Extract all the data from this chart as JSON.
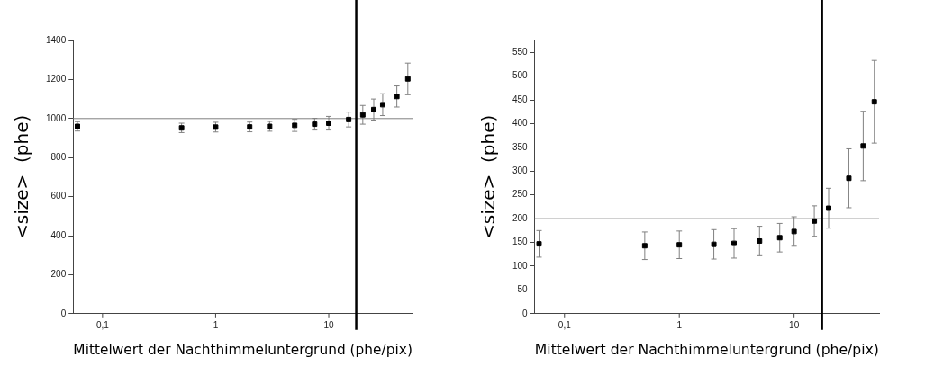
{
  "chart_data": [
    {
      "type": "scatter",
      "xlabel": "Mittelwert der Nachthimmeluntergrund (phe/pix)",
      "ylabel": "<size>  (phe)",
      "log": "x",
      "marker": "square",
      "grid": false,
      "legend": false,
      "xlim": [
        0.055,
        55
      ],
      "xticks": [
        {
          "value": 0.1,
          "label": "0,1"
        },
        {
          "value": 1,
          "label": "1"
        },
        {
          "value": 10,
          "label": "10"
        }
      ],
      "ylim": [
        0,
        1400
      ],
      "yticks": [
        0,
        200,
        400,
        600,
        800,
        1000,
        1200,
        1400
      ],
      "x": [
        0.06,
        0.5,
        1,
        2,
        3,
        5,
        7.5,
        10,
        15,
        20,
        25,
        30,
        40,
        50
      ],
      "series": [
        {
          "color": "#000000",
          "values": [
            960,
            952,
            956,
            957,
            960,
            965,
            971,
            976,
            995,
            1019,
            1046,
            1071,
            1113,
            1203
          ],
          "errors": [
            24,
            24,
            25,
            25,
            25,
            31,
            30,
            35,
            38,
            48,
            54,
            56,
            54,
            81
          ]
        }
      ],
      "ref_lines": [
        {
          "axis": "y",
          "value": 1000,
          "color": "#808080"
        },
        {
          "axis": "x",
          "value": 17.5,
          "color": "#000000"
        }
      ]
    },
    {
      "type": "scatter",
      "xlabel": "Mittelwert der Nachthimmeluntergrund (phe/pix)",
      "ylabel": "<size>  (phe)",
      "log": "x",
      "marker": "square",
      "grid": false,
      "legend": false,
      "xlim": [
        0.055,
        55
      ],
      "xticks": [
        {
          "value": 0.1,
          "label": "0,1"
        },
        {
          "value": 1,
          "label": "1"
        },
        {
          "value": 10,
          "label": "10"
        }
      ],
      "ylim": [
        0,
        575
      ],
      "yticks": [
        0,
        50,
        100,
        150,
        200,
        250,
        300,
        350,
        400,
        450,
        500,
        550
      ],
      "x": [
        0.06,
        0.5,
        1,
        2,
        3,
        5,
        7.5,
        10,
        15,
        20,
        30,
        40,
        50
      ],
      "series": [
        {
          "color": "#000000",
          "values": [
            147,
            143,
            145,
            146,
            148,
            153,
            160,
            173,
            195,
            222,
            285,
            353,
            446
          ],
          "errors": [
            28,
            29,
            29,
            31,
            31,
            31,
            30,
            31,
            32,
            42,
            62,
            73,
            87
          ]
        }
      ],
      "ref_lines": [
        {
          "axis": "y",
          "value": 200,
          "color": "#808080"
        },
        {
          "axis": "x",
          "value": 17.5,
          "color": "#000000"
        }
      ]
    }
  ]
}
